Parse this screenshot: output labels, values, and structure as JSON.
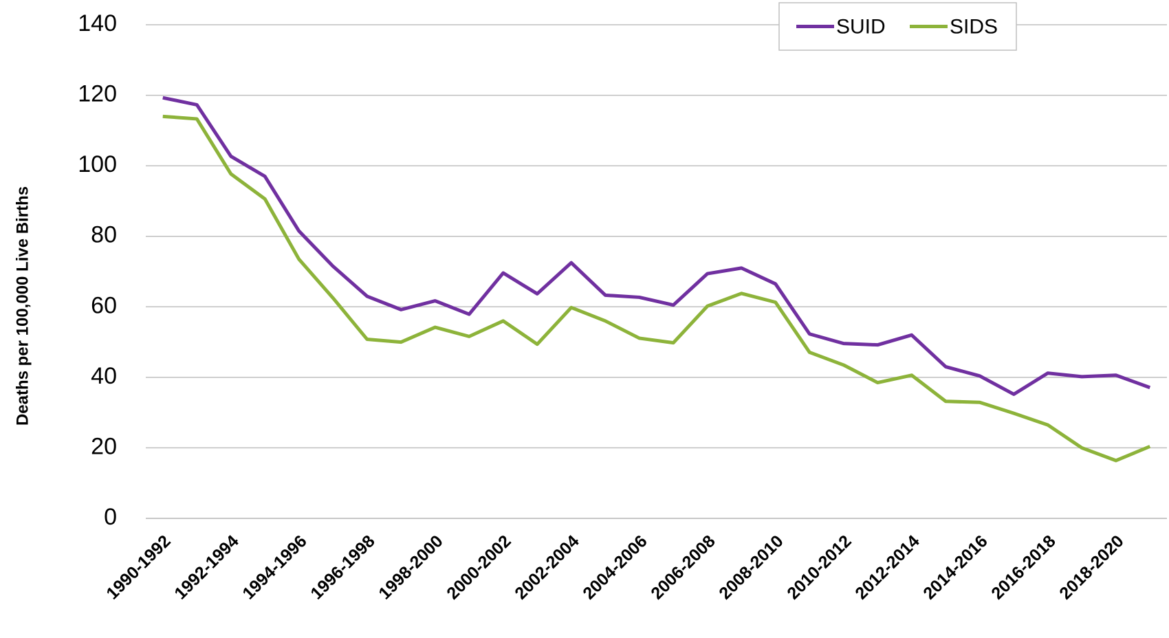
{
  "chart_data": {
    "type": "line",
    "y_label": "Deaths per 100,000 Live Births",
    "categories": [
      "1990-1992",
      null,
      "1992-1994",
      null,
      "1994-1996",
      null,
      "1996-1998",
      null,
      "1998-2000",
      null,
      "2000-2002",
      null,
      "2002-2004",
      null,
      "2004-2006",
      null,
      "2006-2008",
      null,
      "2008-2010",
      null,
      "2010-2012",
      null,
      "2012-2014",
      null,
      "2014-2016",
      null,
      "2016-2018",
      null,
      "2018-2020",
      null
    ],
    "series": [
      {
        "name": "SUID",
        "color": "#7030a0",
        "values": [
          119.3,
          117.3,
          102.7,
          97,
          81.5,
          71.5,
          63,
          59.2,
          61.7,
          57.9,
          69.6,
          63.7,
          72.5,
          63.3,
          62.7,
          60.5,
          69.4,
          71,
          66.5,
          52.3,
          49.6,
          49.2,
          52,
          43,
          40.4,
          35.2,
          41.2,
          40.2,
          40.6,
          37.1
        ]
      },
      {
        "name": "SIDS",
        "color": "#8db33a",
        "values": [
          114,
          113.3,
          97.7,
          90.6,
          73.5,
          62.5,
          50.8,
          50,
          54.2,
          51.6,
          56,
          49.4,
          59.8,
          56,
          51.1,
          49.8,
          60.2,
          63.8,
          61.3,
          47.1,
          43.5,
          38.5,
          40.6,
          33.2,
          32.9,
          29.8,
          26.5,
          20,
          16.4,
          20.4
        ]
      }
    ],
    "ylim": [
      0,
      140
    ],
    "yticks": [
      0,
      20,
      40,
      60,
      80,
      100,
      120,
      140
    ],
    "grid": true,
    "legend": "top"
  }
}
